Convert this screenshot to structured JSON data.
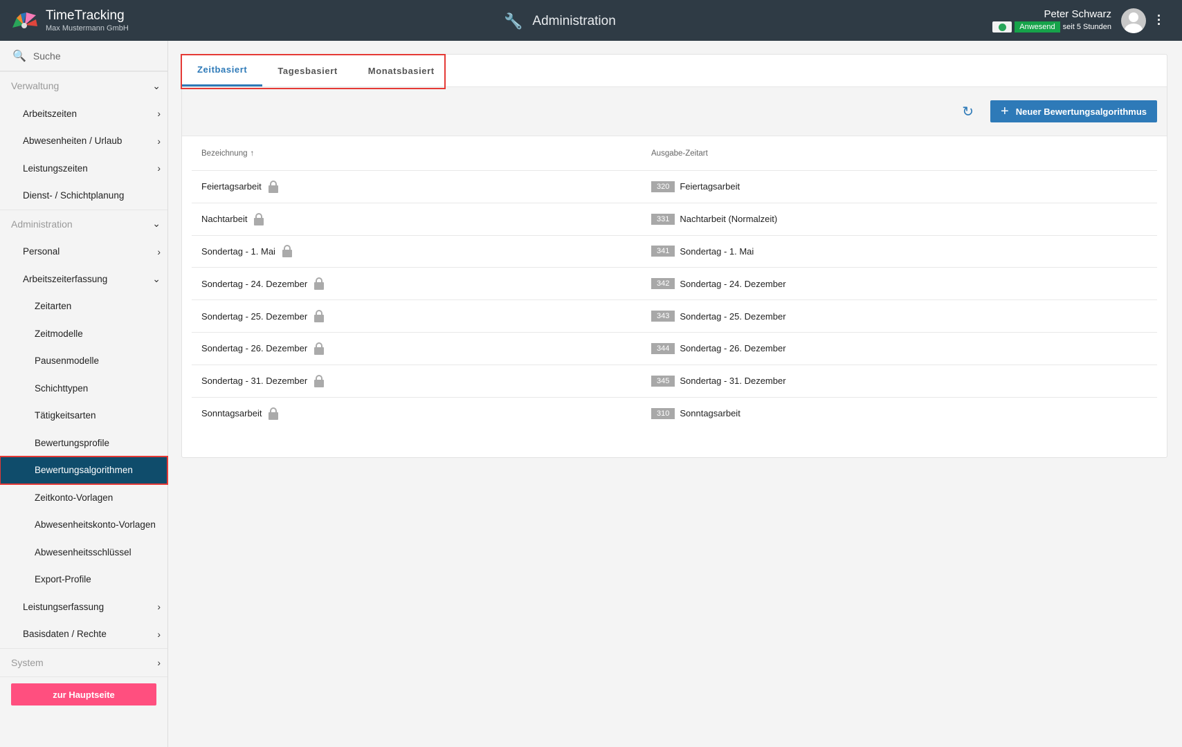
{
  "header": {
    "brand": "TimeTracking",
    "company": "Max Mustermann GmbH",
    "title": "Administration",
    "user": "Peter Schwarz",
    "status": "Anwesend",
    "since": "seit 5 Stunden"
  },
  "colors": {
    "header": "#2f3b45",
    "accent": "#2e7ab8",
    "active_nav": "#0f4c6b",
    "home_button": "#ff4f7f",
    "status_green": "#16a34a"
  },
  "sidebar": {
    "search": "Suche",
    "sections": [
      {
        "label": "Verwaltung",
        "items": [
          {
            "label": "Arbeitszeiten"
          },
          {
            "label": "Abwesenheiten / Urlaub"
          },
          {
            "label": "Leistungszeiten"
          },
          {
            "label": "Dienst- / Schichtplanung"
          }
        ]
      },
      {
        "label": "Administration",
        "items": [
          {
            "label": "Personal"
          },
          {
            "label": "Arbeitszeiterfassung"
          }
        ],
        "subitems": [
          {
            "label": "Zeitarten"
          },
          {
            "label": "Zeitmodelle"
          },
          {
            "label": "Pausenmodelle"
          },
          {
            "label": "Schichttypen"
          },
          {
            "label": "Tätigkeitsarten"
          },
          {
            "label": "Bewertungsprofile"
          },
          {
            "label": "Bewertungsalgorithmen"
          },
          {
            "label": "Zeitkonto-Vorlagen"
          },
          {
            "label": "Abwesenheitskonto-Vorlagen"
          },
          {
            "label": "Abwesenheitsschlüssel"
          },
          {
            "label": "Export-Profile"
          }
        ],
        "more": [
          {
            "label": "Leistungserfassung"
          },
          {
            "label": "Basisdaten / Rechte"
          }
        ]
      },
      {
        "label": "System"
      }
    ],
    "home_button": "zur Hauptseite"
  },
  "main": {
    "tabs": [
      {
        "label": "Zeitbasiert"
      },
      {
        "label": "Tagesbasiert"
      },
      {
        "label": "Monatsbasiert"
      }
    ],
    "new_button": "Neuer Bewertungsalgorithmus",
    "columns": [
      "Bezeichnung",
      "Ausgabe-Zeitart"
    ],
    "rows": [
      {
        "name": "Feiertagsarbeit",
        "code": "320",
        "type": "Feiertagsarbeit"
      },
      {
        "name": "Nachtarbeit",
        "code": "331",
        "type": "Nachtarbeit (Normalzeit)"
      },
      {
        "name": "Sondertag - 1. Mai",
        "code": "341",
        "type": "Sondertag - 1. Mai"
      },
      {
        "name": "Sondertag - 24. Dezember",
        "code": "342",
        "type": "Sondertag - 24. Dezember"
      },
      {
        "name": "Sondertag - 25. Dezember",
        "code": "343",
        "type": "Sondertag - 25. Dezember"
      },
      {
        "name": "Sondertag - 26. Dezember",
        "code": "344",
        "type": "Sondertag - 26. Dezember"
      },
      {
        "name": "Sondertag - 31. Dezember",
        "code": "345",
        "type": "Sondertag - 31. Dezember"
      },
      {
        "name": "Sonntagsarbeit",
        "code": "310",
        "type": "Sonntagsarbeit"
      }
    ]
  }
}
